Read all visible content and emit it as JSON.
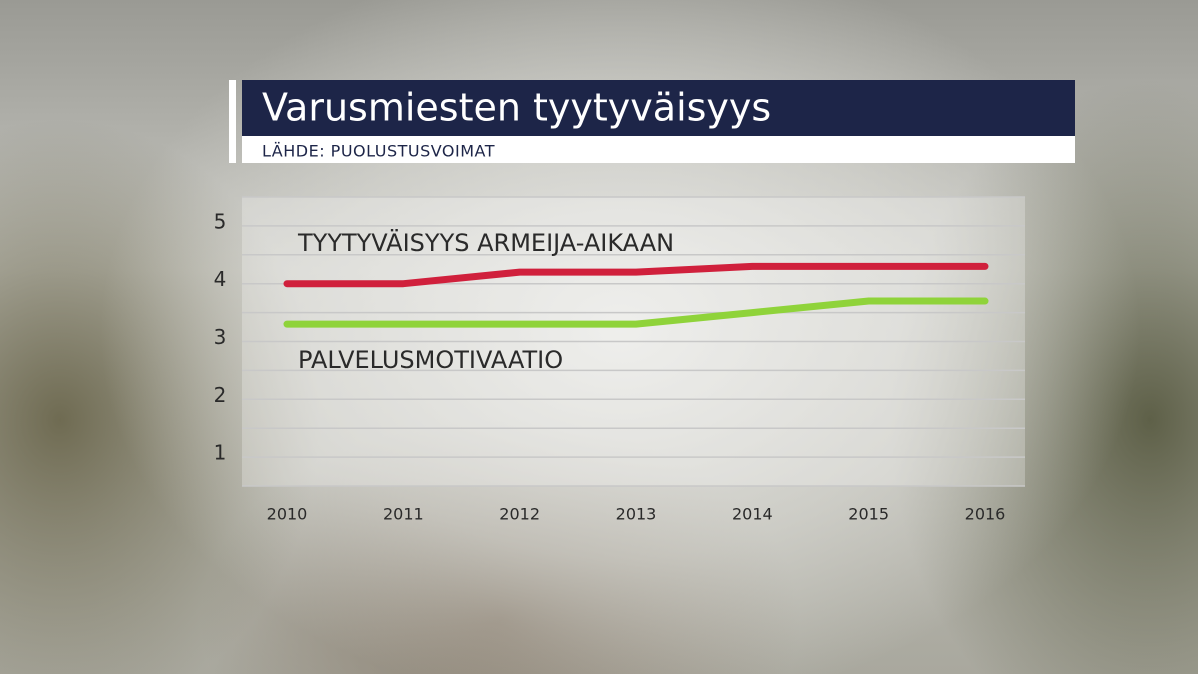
{
  "chart_data": {
    "type": "line",
    "title": "Varusmiesten tyytyväisyys",
    "subtitle": "LÄHDE: PUOLUSTUSVOIMAT",
    "categories": [
      "2010",
      "2011",
      "2012",
      "2013",
      "2014",
      "2015",
      "2016"
    ],
    "series": [
      {
        "name": "TYYTYVÄISYYS ARMEIJA-AIKAAN",
        "color": "#d0203c",
        "values": [
          4.0,
          4.0,
          4.2,
          4.2,
          4.3,
          4.3,
          4.3
        ]
      },
      {
        "name": "PALVELUSMOTIVAATIO",
        "color": "#8fd33a",
        "values": [
          3.3,
          3.3,
          3.3,
          3.3,
          3.5,
          3.7,
          3.7
        ]
      }
    ],
    "ylim": [
      0.5,
      5.5
    ],
    "yticks": [
      1,
      2,
      3,
      4,
      5
    ],
    "minor_yticks": [
      0.5,
      1.5,
      2.5,
      3.5,
      4.5,
      5.5
    ],
    "grid": true
  }
}
